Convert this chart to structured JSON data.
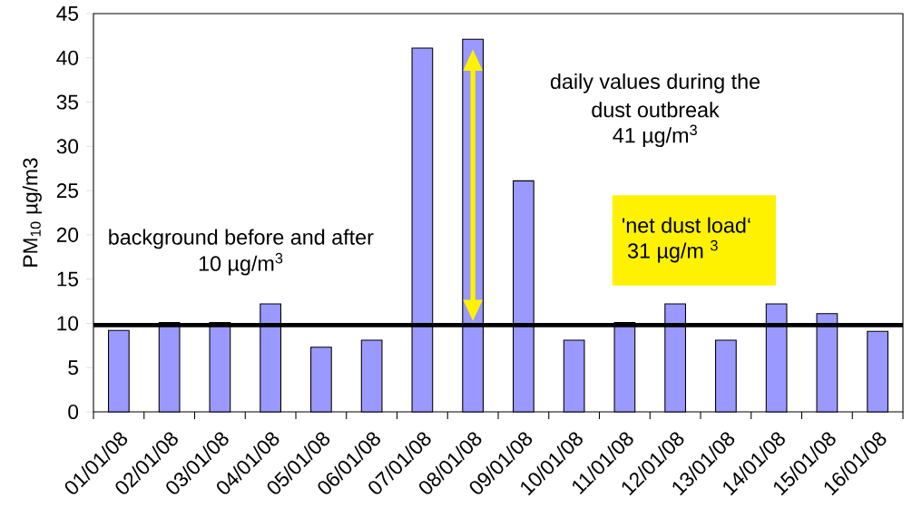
{
  "chart_data": {
    "type": "bar",
    "categories": [
      "01/01/08",
      "02/01/08",
      "03/01/08",
      "04/01/08",
      "05/01/08",
      "06/01/08",
      "07/01/08",
      "08/01/08",
      "09/01/08",
      "10/01/08",
      "11/01/08",
      "12/01/08",
      "13/01/08",
      "14/01/08",
      "15/01/08",
      "16/01/08"
    ],
    "values": [
      9.2,
      10.1,
      10.1,
      12.2,
      7.3,
      8.1,
      41.1,
      42.1,
      26.1,
      8.1,
      10.1,
      12.2,
      8.1,
      12.2,
      11.1,
      9.1
    ],
    "color": "#9999ff",
    "ylabel": "PM$_{10}$ µg/m3",
    "ylim": [
      0,
      45
    ],
    "yticks": [
      0,
      5,
      10,
      15,
      20,
      25,
      30,
      35,
      40,
      45
    ],
    "ref_lines": [
      {
        "axis": "y",
        "value": 9.8,
        "color": "#000000"
      }
    ],
    "annotations": [
      "background before and after",
      "10 µg/m$^{3}$",
      "daily values during the",
      "dust outbreak",
      "41 µg/m$^{3}$",
      "'net dust load‘",
      "31 µg/m $^{3}$"
    ]
  }
}
